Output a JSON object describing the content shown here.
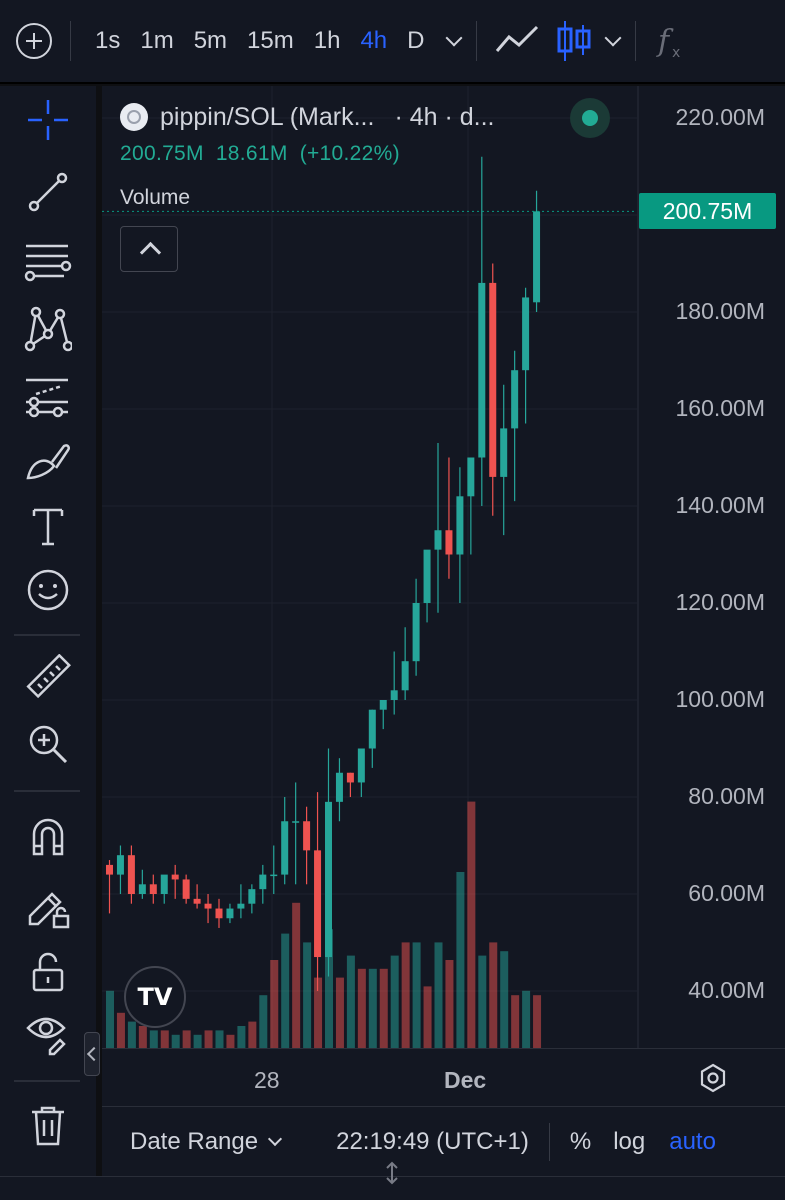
{
  "toolbar": {
    "timeframes": [
      "1s",
      "1m",
      "5m",
      "15m",
      "1h",
      "4h",
      "D"
    ],
    "active_timeframe": "4h",
    "icons": [
      "add-symbol-icon",
      "chevron-down-icon",
      "line-chart-icon",
      "candles-icon",
      "chevron-down-icon",
      "indicators-fx-icon"
    ]
  },
  "left_tools": [
    "crosshair-icon",
    "trend-line-icon",
    "fib-retracement-icon",
    "xabcd-pattern-icon",
    "forecast-icon",
    "brush-icon",
    "text-icon",
    "emoji-icon",
    "ruler-icon",
    "zoom-in-icon",
    "magnet-icon",
    "lock-drawings-icon",
    "unlock-icon",
    "eye-icon",
    "trash-icon"
  ],
  "legend": {
    "symbol": "pippin/SOL (Mark...",
    "meta": "· 4h · d...",
    "last": "200.75M",
    "change": "18.61M",
    "change_pct": "(+10.22%)",
    "volume_label": "Volume"
  },
  "price_axis": {
    "labels": [
      "220.00M",
      "180.00M",
      "160.00M",
      "140.00M",
      "120.00M",
      "100.00M",
      "80.00M",
      "60.00M",
      "40.00M"
    ],
    "last_price": "200.75M"
  },
  "time_axis": {
    "labels": [
      "28",
      "Dec"
    ]
  },
  "bottombar": {
    "date_range": "Date Range",
    "time": "22:19:49 (UTC+1)",
    "percent": "%",
    "log": "log",
    "auto": "auto"
  },
  "colors": {
    "up": "#26a69a",
    "down": "#ef5350",
    "accent": "#2962ff",
    "last_price_bg": "#089981"
  },
  "chart_data": {
    "type": "candlestick",
    "interval": "4h",
    "y_unit": "M",
    "ylim": [
      35,
      225
    ],
    "candles": [
      [
        66,
        67,
        56,
        64
      ],
      [
        64,
        70,
        60,
        68
      ],
      [
        68,
        70,
        58,
        60
      ],
      [
        60,
        65,
        59,
        62
      ],
      [
        62,
        64,
        58,
        60
      ],
      [
        60,
        63,
        58,
        64
      ],
      [
        64,
        66,
        59,
        63
      ],
      [
        63,
        64,
        58,
        59
      ],
      [
        59,
        62,
        57,
        58
      ],
      [
        58,
        60,
        54,
        57
      ],
      [
        57,
        59,
        53,
        55
      ],
      [
        55,
        58,
        54,
        57
      ],
      [
        57,
        62,
        55,
        58
      ],
      [
        58,
        62,
        56,
        61
      ],
      [
        61,
        66,
        58,
        64
      ],
      [
        64,
        70,
        60,
        64
      ],
      [
        64,
        80,
        62,
        75
      ],
      [
        75,
        83,
        62,
        75
      ],
      [
        75,
        78,
        62,
        69
      ],
      [
        69,
        81,
        40,
        47
      ],
      [
        47,
        90,
        43,
        79
      ],
      [
        79,
        88,
        75,
        85
      ],
      [
        85,
        85,
        80,
        83
      ],
      [
        83,
        90,
        80,
        90
      ],
      [
        90,
        98,
        86,
        98
      ],
      [
        98,
        100,
        94,
        100
      ],
      [
        100,
        110,
        97,
        102
      ],
      [
        102,
        115,
        100,
        108
      ],
      [
        108,
        125,
        105,
        120
      ],
      [
        120,
        130,
        116,
        131
      ],
      [
        131,
        153,
        118,
        135
      ],
      [
        135,
        150,
        125,
        130
      ],
      [
        130,
        148,
        120,
        142
      ],
      [
        142,
        150,
        130,
        150
      ],
      [
        150,
        212,
        140,
        186
      ],
      [
        186,
        190,
        138,
        146
      ],
      [
        146,
        165,
        134,
        156
      ],
      [
        156,
        172,
        141,
        168
      ],
      [
        168,
        185,
        157,
        183
      ],
      [
        182,
        205,
        180,
        200.75
      ]
    ],
    "volume": [
      [
        1,
        0.13
      ],
      [
        0,
        0.08
      ],
      [
        1,
        0.06
      ],
      [
        0,
        0.05
      ],
      [
        1,
        0.04
      ],
      [
        0,
        0.04
      ],
      [
        1,
        0.03
      ],
      [
        0,
        0.04
      ],
      [
        1,
        0.03
      ],
      [
        0,
        0.04
      ],
      [
        1,
        0.04
      ],
      [
        0,
        0.03
      ],
      [
        1,
        0.05
      ],
      [
        0,
        0.06
      ],
      [
        1,
        0.12
      ],
      [
        0,
        0.2
      ],
      [
        1,
        0.26
      ],
      [
        0,
        0.33
      ],
      [
        1,
        0.24
      ],
      [
        0,
        0.16
      ],
      [
        1,
        0.27
      ],
      [
        0,
        0.16
      ],
      [
        1,
        0.21
      ],
      [
        0,
        0.18
      ],
      [
        1,
        0.18
      ],
      [
        0,
        0.18
      ],
      [
        1,
        0.21
      ],
      [
        0,
        0.24
      ],
      [
        1,
        0.24
      ],
      [
        0,
        0.14
      ],
      [
        1,
        0.24
      ],
      [
        0,
        0.2
      ],
      [
        1,
        0.4
      ],
      [
        0,
        0.56
      ],
      [
        1,
        0.21
      ],
      [
        0,
        0.24
      ],
      [
        1,
        0.22
      ],
      [
        0,
        0.12
      ],
      [
        1,
        0.13
      ],
      [
        0,
        0.12
      ]
    ]
  }
}
